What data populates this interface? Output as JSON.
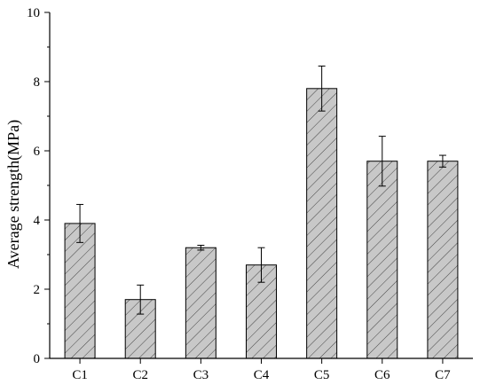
{
  "chart_data": {
    "type": "bar",
    "categories": [
      "C1",
      "C2",
      "C3",
      "C4",
      "C5",
      "C6",
      "C7"
    ],
    "values": [
      3.9,
      1.7,
      3.2,
      2.7,
      7.8,
      5.7,
      5.7
    ],
    "errors": [
      0.55,
      0.42,
      0.07,
      0.5,
      0.65,
      0.72,
      0.17
    ],
    "ylabel": "Average strength(MPa)",
    "xlabel": "",
    "ylim": [
      0,
      10
    ],
    "yticks": [
      0,
      2,
      4,
      6,
      8,
      10
    ],
    "bar_fill": "#c8c8c8",
    "hatch": "diagonal",
    "grid": false,
    "legend": "none"
  }
}
